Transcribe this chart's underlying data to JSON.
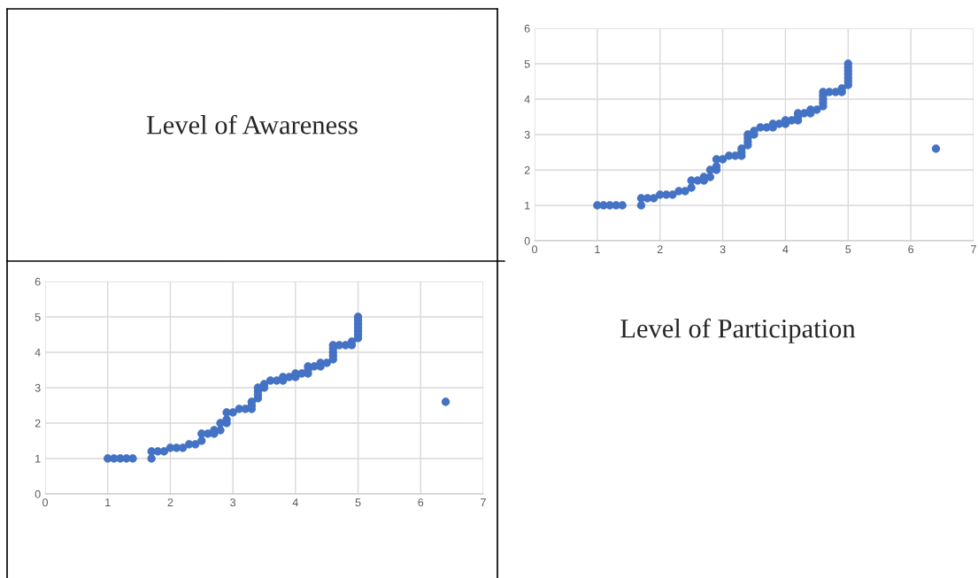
{
  "chart_data": [
    {
      "type": "other",
      "title": "Level of Awareness"
    },
    {
      "type": "scatter",
      "x": [
        1.0,
        1.1,
        1.2,
        1.3,
        1.4,
        1.7,
        1.7,
        1.8,
        1.9,
        2.0,
        2.1,
        2.2,
        2.3,
        2.4,
        2.5,
        2.5,
        2.6,
        2.7,
        2.7,
        2.8,
        2.8,
        2.9,
        2.9,
        2.9,
        3.0,
        3.1,
        3.2,
        3.3,
        3.3,
        3.3,
        3.4,
        3.4,
        3.4,
        3.4,
        3.5,
        3.5,
        3.6,
        3.7,
        3.8,
        3.8,
        3.9,
        4.0,
        4.0,
        4.1,
        4.2,
        4.2,
        4.2,
        4.3,
        4.4,
        4.4,
        4.5,
        4.6,
        4.6,
        4.6,
        4.6,
        4.6,
        4.7,
        4.8,
        4.9,
        4.9,
        5.0,
        5.0,
        5.0,
        5.0,
        5.0,
        5.0,
        5.0,
        6.4
      ],
      "values": [
        1.0,
        1.0,
        1.0,
        1.0,
        1.0,
        1.0,
        1.2,
        1.2,
        1.2,
        1.3,
        1.3,
        1.3,
        1.4,
        1.4,
        1.5,
        1.7,
        1.7,
        1.7,
        1.8,
        1.8,
        2.0,
        2.0,
        2.1,
        2.3,
        2.3,
        2.4,
        2.4,
        2.4,
        2.5,
        2.6,
        2.7,
        2.8,
        2.9,
        3.0,
        3.0,
        3.1,
        3.2,
        3.2,
        3.2,
        3.3,
        3.3,
        3.3,
        3.4,
        3.4,
        3.4,
        3.5,
        3.6,
        3.6,
        3.6,
        3.7,
        3.7,
        3.8,
        3.9,
        4.0,
        4.1,
        4.2,
        4.2,
        4.2,
        4.2,
        4.3,
        4.4,
        4.5,
        4.6,
        4.7,
        4.8,
        4.9,
        5.0,
        2.6
      ],
      "color": "#4472c4",
      "marker": "circle",
      "grid": true,
      "xlim": [
        0,
        7
      ],
      "ylim": [
        0,
        6
      ],
      "xticks": [
        0,
        1,
        2,
        3,
        4,
        5,
        6,
        7
      ],
      "yticks": [
        0,
        1,
        2,
        3,
        4,
        5,
        6
      ]
    },
    {
      "type": "scatter",
      "x": [
        1.0,
        1.1,
        1.2,
        1.3,
        1.4,
        1.7,
        1.7,
        1.8,
        1.9,
        2.0,
        2.1,
        2.2,
        2.3,
        2.4,
        2.5,
        2.5,
        2.6,
        2.7,
        2.7,
        2.8,
        2.8,
        2.9,
        2.9,
        2.9,
        3.0,
        3.1,
        3.2,
        3.3,
        3.3,
        3.3,
        3.4,
        3.4,
        3.4,
        3.4,
        3.5,
        3.5,
        3.6,
        3.7,
        3.8,
        3.8,
        3.9,
        4.0,
        4.0,
        4.1,
        4.2,
        4.2,
        4.2,
        4.3,
        4.4,
        4.4,
        4.5,
        4.6,
        4.6,
        4.6,
        4.6,
        4.6,
        4.7,
        4.8,
        4.9,
        4.9,
        5.0,
        5.0,
        5.0,
        5.0,
        5.0,
        5.0,
        5.0,
        6.4
      ],
      "values": [
        1.0,
        1.0,
        1.0,
        1.0,
        1.0,
        1.0,
        1.2,
        1.2,
        1.2,
        1.3,
        1.3,
        1.3,
        1.4,
        1.4,
        1.5,
        1.7,
        1.7,
        1.7,
        1.8,
        1.8,
        2.0,
        2.0,
        2.1,
        2.3,
        2.3,
        2.4,
        2.4,
        2.4,
        2.5,
        2.6,
        2.7,
        2.8,
        2.9,
        3.0,
        3.0,
        3.1,
        3.2,
        3.2,
        3.2,
        3.3,
        3.3,
        3.3,
        3.4,
        3.4,
        3.4,
        3.5,
        3.6,
        3.6,
        3.6,
        3.7,
        3.7,
        3.8,
        3.9,
        4.0,
        4.1,
        4.2,
        4.2,
        4.2,
        4.2,
        4.3,
        4.4,
        4.5,
        4.6,
        4.7,
        4.8,
        4.9,
        5.0,
        2.6
      ],
      "color": "#4472c4",
      "marker": "circle",
      "grid": true,
      "xlim": [
        0,
        7
      ],
      "ylim": [
        0,
        6
      ],
      "xticks": [
        0,
        1,
        2,
        3,
        4,
        5,
        6,
        7
      ],
      "yticks": [
        0,
        1,
        2,
        3,
        4,
        5,
        6
      ]
    },
    {
      "type": "other",
      "title": "Level of Participation"
    }
  ]
}
